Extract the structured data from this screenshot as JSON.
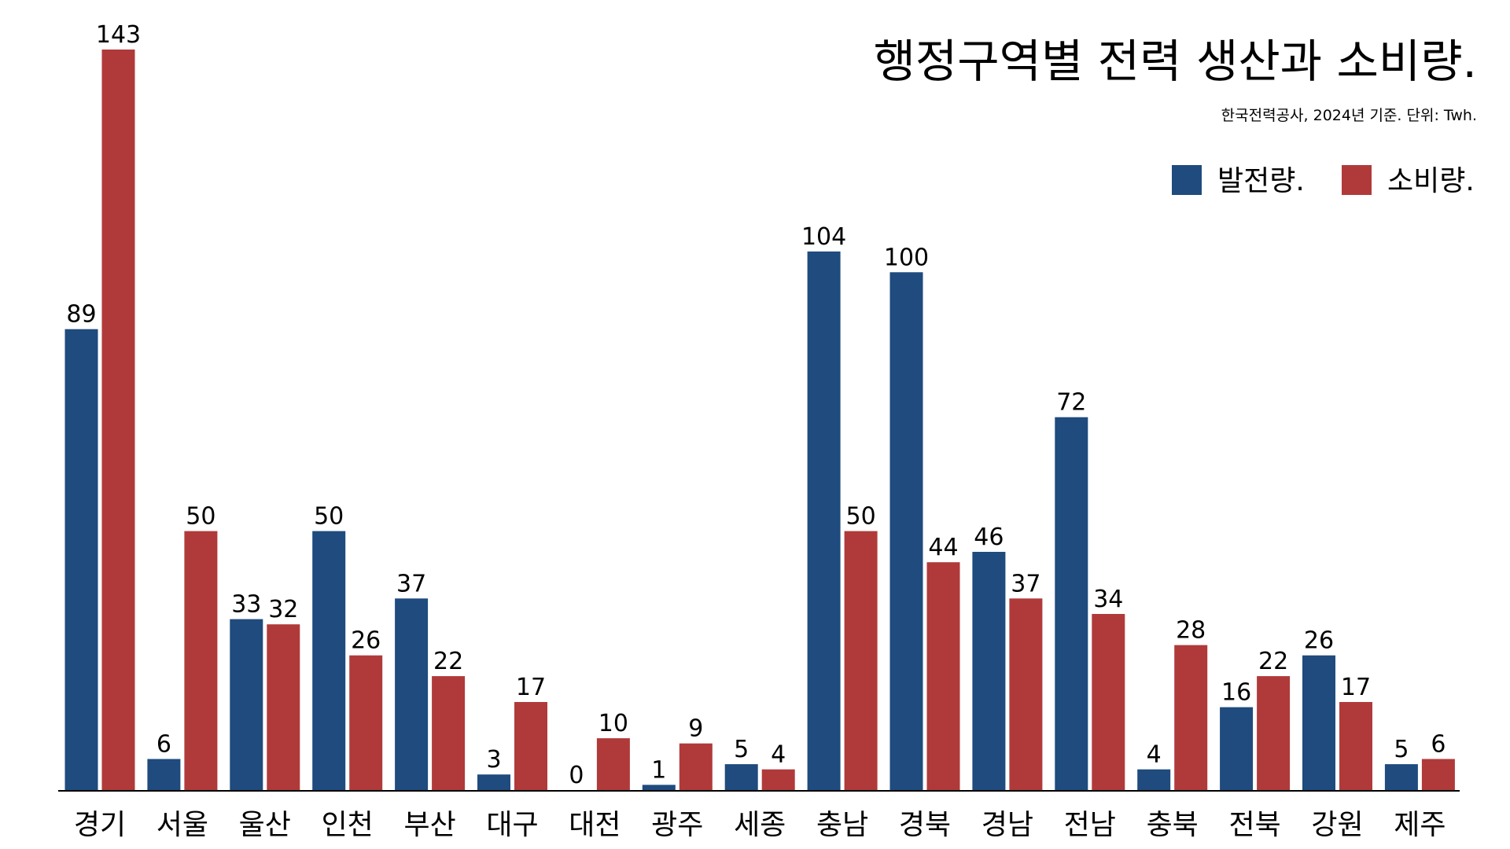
{
  "chart_data": {
    "type": "bar",
    "title": "행정구역별 전력 생산과 소비량.",
    "subtitle": "한국전력공사, 2024년 기준. 단위: Twh.",
    "xlabel": "",
    "ylabel": "",
    "ylim": [
      0,
      143
    ],
    "grid": false,
    "legend_position": "top-right",
    "categories": [
      "경기",
      "서울",
      "울산",
      "인천",
      "부산",
      "대구",
      "대전",
      "광주",
      "세종",
      "충남",
      "경북",
      "경남",
      "전남",
      "충북",
      "전북",
      "강원",
      "제주"
    ],
    "series": [
      {
        "name": "발전량.",
        "color": "#1f4b7e",
        "values": [
          89,
          6,
          33,
          50,
          37,
          3,
          0,
          1,
          5,
          104,
          100,
          46,
          72,
          4,
          16,
          26,
          5
        ]
      },
      {
        "name": "소비량.",
        "color": "#b03a3a",
        "values": [
          143,
          50,
          32,
          26,
          22,
          17,
          10,
          9,
          4,
          50,
          44,
          37,
          34,
          28,
          22,
          17,
          6
        ]
      }
    ]
  }
}
